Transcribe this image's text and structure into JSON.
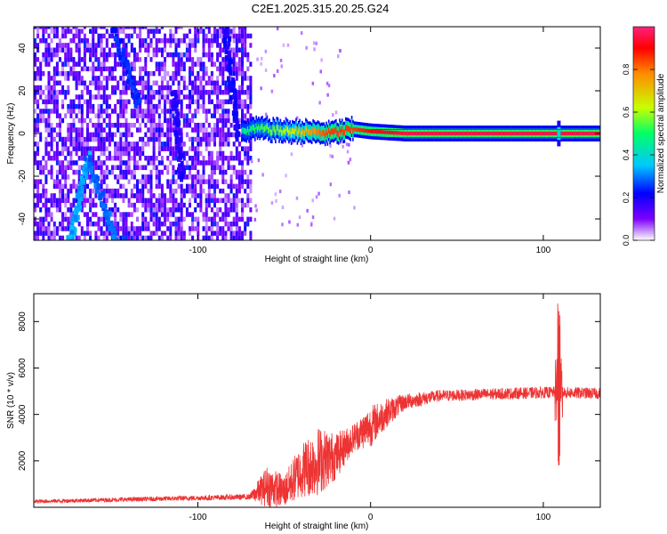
{
  "title": "C2E1.2025.315.20.25.G24",
  "chart_data": [
    {
      "type": "heatmap",
      "name": "spectrogram",
      "xlabel": "Height of straight line (km)",
      "ylabel": "Frequency (Hz)",
      "xlim": [
        -195,
        133
      ],
      "ylim": [
        -50,
        50
      ],
      "xticks": [
        -100,
        0,
        100
      ],
      "yticks": [
        -40,
        -20,
        0,
        20,
        40
      ],
      "colorbar": {
        "label": "Normalized spectral amplitude",
        "range": [
          0,
          1
        ],
        "ticks": [
          0.0,
          0.2,
          0.4,
          0.6,
          0.8
        ],
        "colors": [
          "#ffffff",
          "#7d00ff",
          "#0000ff",
          "#00c8ff",
          "#00ff66",
          "#c8ff00",
          "#ff8c00",
          "#ff0000",
          "#ff2080"
        ]
      },
      "noise_region_x": [
        -195,
        -70
      ],
      "signal_track": [
        {
          "x": -75,
          "f": 0,
          "amp": 0.45
        },
        {
          "x": -70,
          "f": 2,
          "amp": 0.5
        },
        {
          "x": -60,
          "f": 2,
          "amp": 0.55
        },
        {
          "x": -50,
          "f": 1,
          "amp": 0.6
        },
        {
          "x": -40,
          "f": 1,
          "amp": 0.7
        },
        {
          "x": -25,
          "f": 0,
          "amp": 0.85
        },
        {
          "x": -10,
          "f": 2,
          "amp": 0.85
        },
        {
          "x": 0,
          "f": 1,
          "amp": 0.9
        },
        {
          "x": 20,
          "f": 0,
          "amp": 0.95
        },
        {
          "x": 60,
          "f": 0,
          "amp": 0.95
        },
        {
          "x": 133,
          "f": 0,
          "amp": 0.95
        }
      ],
      "spike_x": 109
    },
    {
      "type": "line",
      "name": "snr",
      "xlabel": "Height of straight line (km)",
      "ylabel": "SNR (10 * v/v)",
      "xlim": [
        -195,
        133
      ],
      "ylim": [
        0,
        9200
      ],
      "xticks": [
        -100,
        0,
        100
      ],
      "yticks": [
        2000,
        4000,
        6000,
        8000
      ],
      "color": "#ee3333",
      "trend": [
        {
          "x": -195,
          "y": 250,
          "noise": 80
        },
        {
          "x": -70,
          "y": 450,
          "noise": 120
        },
        {
          "x": -60,
          "y": 900,
          "noise": 900
        },
        {
          "x": -50,
          "y": 700,
          "noise": 700
        },
        {
          "x": -40,
          "y": 1600,
          "noise": 1200
        },
        {
          "x": -30,
          "y": 2000,
          "noise": 1500
        },
        {
          "x": -20,
          "y": 2200,
          "noise": 1000
        },
        {
          "x": -10,
          "y": 3000,
          "noise": 600
        },
        {
          "x": 0,
          "y": 3500,
          "noise": 900
        },
        {
          "x": 10,
          "y": 4100,
          "noise": 600
        },
        {
          "x": 20,
          "y": 4550,
          "noise": 350
        },
        {
          "x": 40,
          "y": 4800,
          "noise": 250
        },
        {
          "x": 80,
          "y": 4900,
          "noise": 250
        },
        {
          "x": 105,
          "y": 4950,
          "noise": 250
        },
        {
          "x": 133,
          "y": 4900,
          "noise": 250
        }
      ],
      "spike": {
        "x": 109,
        "max": 9200,
        "min": 1500
      }
    }
  ]
}
